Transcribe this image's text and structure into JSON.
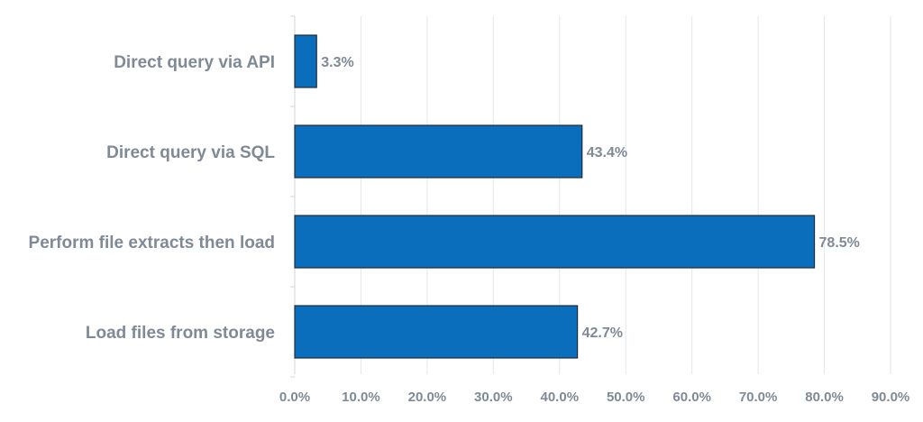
{
  "chart_data": {
    "type": "bar",
    "orientation": "horizontal",
    "categories": [
      "Direct query via API",
      "Direct query via SQL",
      "Perform file extracts then load",
      "Load files from storage"
    ],
    "values": [
      3.3,
      43.4,
      78.5,
      42.7
    ],
    "value_labels": [
      "3.3%",
      "43.4%",
      "78.5%",
      "42.7%"
    ],
    "xlim": [
      0,
      90
    ],
    "x_ticks": [
      "0.0%",
      "10.0%",
      "20.0%",
      "30.0%",
      "40.0%",
      "50.0%",
      "60.0%",
      "70.0%",
      "80.0%",
      "90.0%"
    ],
    "title": "",
    "xlabel": "",
    "ylabel": "",
    "grid": "vertical",
    "legend": "none",
    "bar_color": "#0a6ebd",
    "bar_outline_color": "#1f2d3a"
  }
}
